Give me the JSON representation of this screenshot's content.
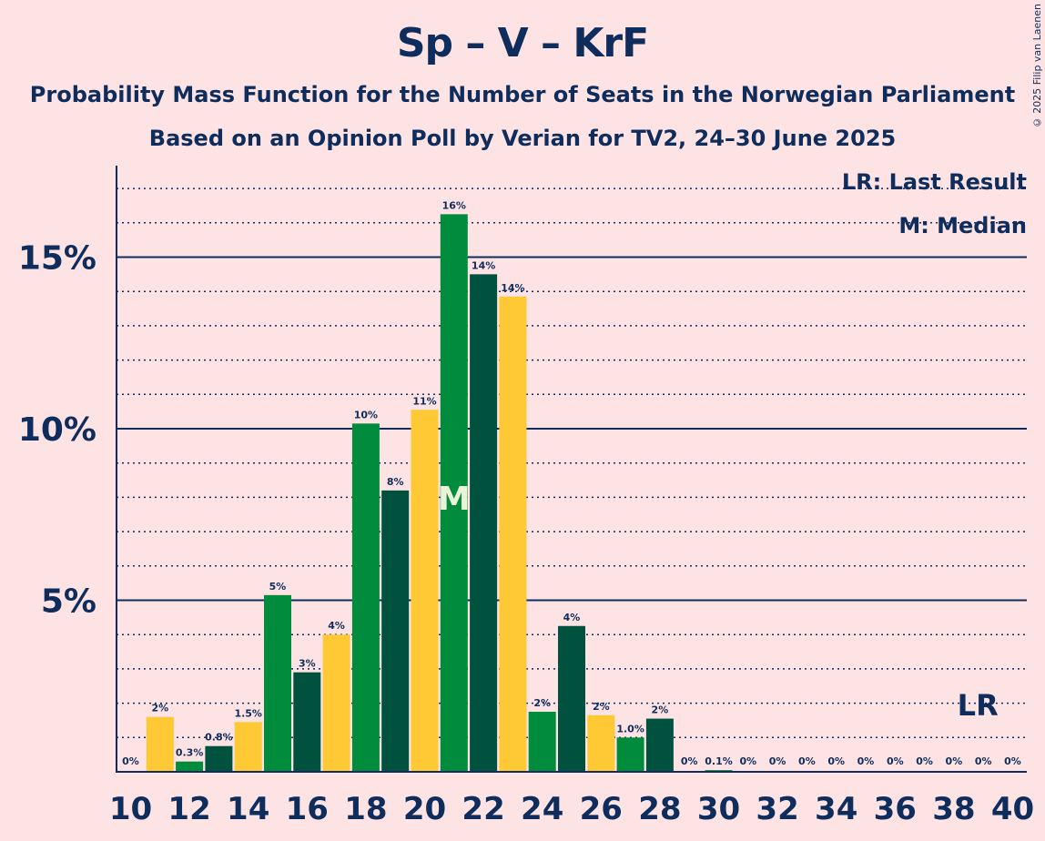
{
  "title": "Sp – V – KrF",
  "subtitle1": "Probability Mass Function for the Number of Seats in the Norwegian Parliament",
  "subtitle2": "Based on an Opinion Poll by Verian for TV2, 24–30 June 2025",
  "copyright": "© 2025 Filip van Laenen",
  "legend": {
    "lr": "LR: Last Result",
    "median": "M: Median"
  },
  "markers": {
    "median_label": "M",
    "median_seat": 21,
    "lr_label": "LR",
    "lr_seat": 39
  },
  "colors": {
    "green": "#008C3C",
    "dark_green": "#00523F",
    "yellow": "#FFC935",
    "axis": "#0E2C5C",
    "background": "#FDE3E3"
  },
  "chart_data": {
    "type": "bar",
    "x": [
      10,
      11,
      12,
      13,
      14,
      15,
      16,
      17,
      18,
      19,
      20,
      21,
      22,
      23,
      24,
      25,
      26,
      27,
      28,
      29,
      30,
      31,
      32,
      33,
      34,
      35,
      36,
      37,
      38,
      39,
      40
    ],
    "values": [
      0,
      1.6,
      0.3,
      0.75,
      1.45,
      5.15,
      2.9,
      4.0,
      10.15,
      8.2,
      10.55,
      16.25,
      14.5,
      13.85,
      1.75,
      4.25,
      1.65,
      1.0,
      1.55,
      0,
      0.05,
      0,
      0,
      0,
      0,
      0,
      0,
      0,
      0,
      0,
      0
    ],
    "labels": [
      "0%",
      "2%",
      "0.3%",
      "0.8%",
      "1.5%",
      "5%",
      "3%",
      "4%",
      "10%",
      "8%",
      "11%",
      "16%",
      "14%",
      "14%",
      "2%",
      "4%",
      "2%",
      "1.0%",
      "2%",
      "0%",
      "0.1%",
      "0%",
      "0%",
      "0%",
      "0%",
      "0%",
      "0%",
      "0%",
      "0%",
      "0%",
      "0%"
    ],
    "bar_colors": [
      "yellow",
      "yellow",
      "green",
      "dark_green",
      "yellow",
      "green",
      "dark_green",
      "yellow",
      "green",
      "dark_green",
      "yellow",
      "green",
      "dark_green",
      "yellow",
      "green",
      "dark_green",
      "yellow",
      "green",
      "dark_green",
      "yellow",
      "green",
      "dark_green",
      "yellow",
      "green",
      "dark_green",
      "yellow",
      "green",
      "dark_green",
      "yellow",
      "green",
      "dark_green"
    ],
    "x_tick_labels": [
      "10",
      "12",
      "14",
      "16",
      "18",
      "20",
      "22",
      "24",
      "26",
      "28",
      "30",
      "32",
      "34",
      "36",
      "38",
      "40"
    ],
    "y_tick_labels": [
      "5%",
      "10%",
      "15%"
    ],
    "y_ticks": [
      5,
      10,
      15
    ],
    "ylim": [
      0,
      17.7
    ],
    "xlim": [
      10,
      40
    ],
    "grid": true
  }
}
